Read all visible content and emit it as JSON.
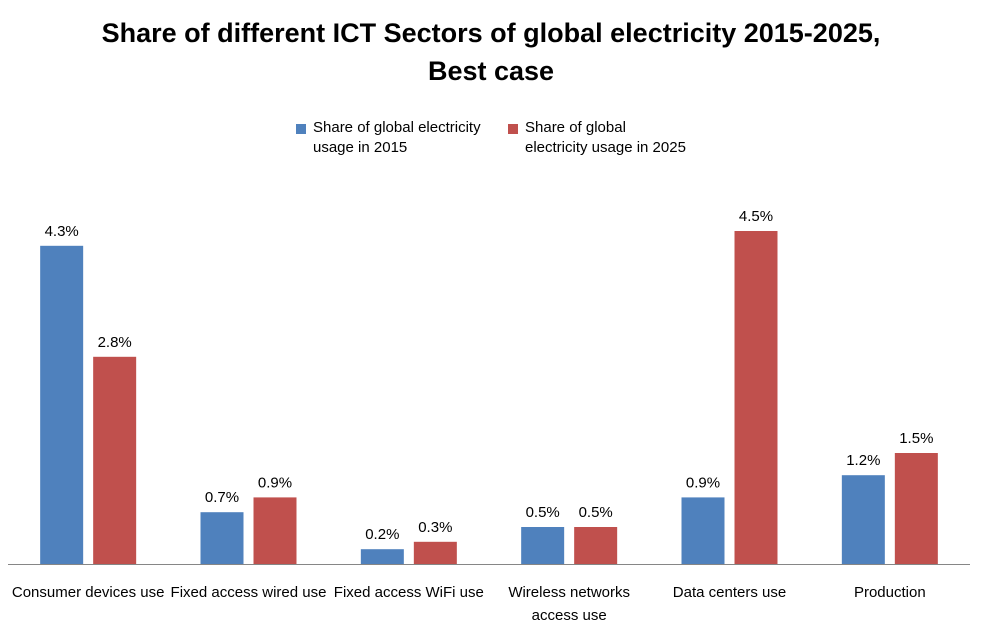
{
  "chart_data": {
    "type": "bar",
    "title_lines": [
      "Share of different ICT Sectors of global electricity 2015-2025,",
      "Best case"
    ],
    "categories": [
      [
        "Consumer devices use"
      ],
      [
        "Fixed access wired use"
      ],
      [
        "Fixed access WiFi use"
      ],
      [
        "Wireless networks",
        "access use"
      ],
      [
        "Data centers use"
      ],
      [
        "Production"
      ]
    ],
    "series": [
      {
        "name": "Share of global electricity usage in 2015",
        "name_lines": [
          "Share of global electricity",
          "usage in 2015"
        ],
        "color": "#4F81BD",
        "values": [
          4.3,
          0.7,
          0.2,
          0.5,
          0.9,
          1.2
        ],
        "labels": [
          "4.3%",
          "0.7%",
          "0.2%",
          "0.5%",
          "0.9%",
          "1.2%"
        ]
      },
      {
        "name": "Share of global electricity usage in 2025",
        "name_lines": [
          "Share of global",
          "electricity usage in 2025"
        ],
        "color": "#C0504D",
        "values": [
          2.8,
          0.9,
          0.3,
          0.5,
          4.5,
          1.5
        ],
        "labels": [
          "2.8%",
          "0.9%",
          "0.3%",
          "0.5%",
          "4.5%",
          "1.5%"
        ]
      }
    ],
    "ylim": [
      0,
      5
    ],
    "legend_position": "top",
    "grid": false
  }
}
